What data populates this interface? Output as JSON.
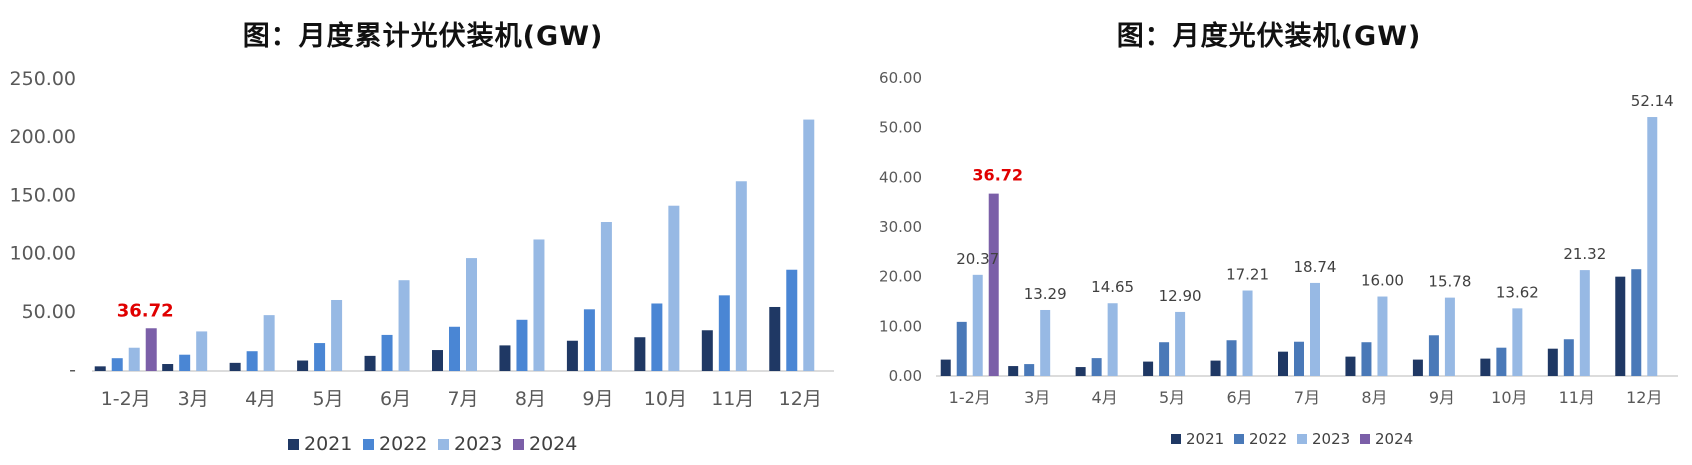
{
  "chart_data": [
    {
      "type": "bar",
      "title": "图：月度累计光伏装机(GW)",
      "categories": [
        "1-2月",
        "3月",
        "4月",
        "5月",
        "6月",
        "7月",
        "8月",
        "9月",
        "10月",
        "11月",
        "12月"
      ],
      "ylim": [
        0,
        250
      ],
      "yticks": [
        "-",
        "50.00",
        "100.00",
        "150.00",
        "200.00",
        "250.00"
      ],
      "series": [
        {
          "name": "2021",
          "color": "#1f3864",
          "values": [
            4,
            6,
            7,
            9,
            13,
            18,
            22,
            26,
            29,
            35,
            55
          ]
        },
        {
          "name": "2022",
          "color": "#4a86d4",
          "values": [
            11,
            14,
            17,
            24,
            31,
            38,
            44,
            53,
            58,
            65,
            87
          ]
        },
        {
          "name": "2023",
          "color": "#97b9e4",
          "values": [
            20,
            34,
            48,
            61,
            78,
            97,
            113,
            128,
            142,
            163,
            216
          ]
        },
        {
          "name": "2024",
          "color": "#7b5fa8",
          "values": [
            36.72,
            null,
            null,
            null,
            null,
            null,
            null,
            null,
            null,
            null,
            null
          ]
        }
      ],
      "annotations": [
        {
          "category": "1-2月",
          "series": "2024",
          "text": "36.72",
          "color": "#e00000"
        }
      ],
      "legend": "bottom",
      "grid": false
    },
    {
      "type": "bar",
      "title": "图：月度光伏装机(GW)",
      "categories": [
        "1-2月",
        "3月",
        "4月",
        "5月",
        "6月",
        "7月",
        "8月",
        "9月",
        "10月",
        "11月",
        "12月"
      ],
      "ylim": [
        0,
        60
      ],
      "yticks": [
        "0.00",
        "10.00",
        "20.00",
        "30.00",
        "40.00",
        "50.00",
        "60.00"
      ],
      "series": [
        {
          "name": "2021",
          "color": "#1f3864",
          "values": [
            3.3,
            2.0,
            1.8,
            2.9,
            3.1,
            4.9,
            3.9,
            3.3,
            3.5,
            5.5,
            20.0
          ]
        },
        {
          "name": "2022",
          "color": "#4a79b8",
          "values": [
            10.9,
            2.4,
            3.6,
            6.8,
            7.2,
            6.9,
            6.8,
            8.2,
            5.7,
            7.4,
            21.5
          ]
        },
        {
          "name": "2023",
          "color": "#97b9e4",
          "values": [
            20.37,
            13.29,
            14.65,
            12.9,
            17.21,
            18.74,
            16.0,
            15.78,
            13.62,
            21.32,
            52.14
          ]
        },
        {
          "name": "2024",
          "color": "#7b5fa8",
          "values": [
            36.72,
            null,
            null,
            null,
            null,
            null,
            null,
            null,
            null,
            null,
            null
          ]
        }
      ],
      "data_labels": [
        "20.37",
        "13.29",
        "14.65",
        "12.90",
        "17.21",
        "18.74",
        "16.00",
        "15.78",
        "13.62",
        "21.32",
        "52.14"
      ],
      "annotations": [
        {
          "category": "1-2月",
          "series": "2024",
          "text": "36.72",
          "color": "#e00000"
        }
      ],
      "legend": "bottom",
      "grid": false
    }
  ]
}
